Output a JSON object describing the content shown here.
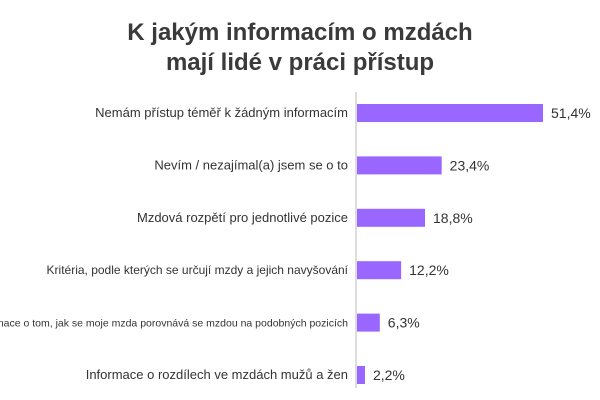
{
  "chart_data": {
    "type": "bar",
    "orientation": "horizontal",
    "title_lines": [
      "K jakým informacím o mzdách",
      "mají lidé v práci přístup"
    ],
    "categories": [
      "Nemám přístup téměř k žádným informacím",
      "Nevím / nezajímal(a) jsem se o to",
      "Mzdová rozpětí pro jednotlivé pozice",
      "Kritéria, podle kterých se určují mzdy a jejich navyšování",
      "Informace o tom, jak se moje mzda porovnává se mzdou na podobných pozicích",
      "Informace o rozdílech ve mzdách mužů a žen"
    ],
    "values": [
      51.4,
      23.4,
      18.8,
      12.2,
      6.3,
      2.2
    ],
    "value_labels": [
      "51,4%",
      "23,4%",
      "18,8%",
      "12,2%",
      "6,3%",
      "2,2%"
    ],
    "xlim": [
      0,
      51.4
    ],
    "grid": false,
    "legend": "none",
    "bar_color": "#9966ff",
    "axis_color": "#bbbbbb"
  }
}
